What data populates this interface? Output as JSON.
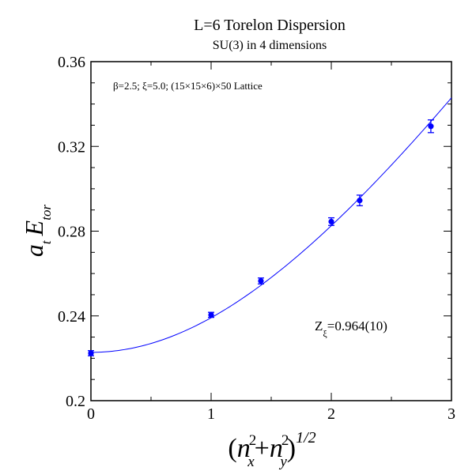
{
  "chart_data": {
    "type": "scatter",
    "title": "L=6 Torelon Dispersion",
    "subtitle": "SU(3) in 4 dimensions",
    "annotation": "β=2.5;  ξ=5.0; (15×15×6)×50 Lattice",
    "fit_label": {
      "main": "Z",
      "sub": "ξ",
      "rest": "=0.964(10)"
    },
    "ylabel": {
      "base": "a",
      "sub": "t",
      "main": "E",
      "main_sub": "tor"
    },
    "xlabel": {
      "n": "n",
      "x": "x",
      "y": "y",
      "sq": "2",
      "power": "1/2"
    },
    "xlim": [
      0,
      3
    ],
    "ylim": [
      0.2,
      0.36
    ],
    "xticks": [
      0,
      1,
      2,
      3
    ],
    "xtick_labels": [
      "0",
      "1",
      "2",
      "3"
    ],
    "yticks": [
      0.2,
      0.24,
      0.28,
      0.32,
      0.36
    ],
    "ytick_labels": [
      "0.2",
      "0.24",
      "0.28",
      "0.32",
      "0.36"
    ],
    "grid": false,
    "marker_color": "#0000ff",
    "line_color": "#0000ff",
    "points": [
      {
        "x": 0.0,
        "y": 0.2224,
        "err": 0.0012
      },
      {
        "x": 1.0,
        "y": 0.2405,
        "err": 0.0012
      },
      {
        "x": 1.4142,
        "y": 0.2565,
        "err": 0.0014
      },
      {
        "x": 2.0,
        "y": 0.2845,
        "err": 0.0018
      },
      {
        "x": 2.2361,
        "y": 0.2945,
        "err": 0.0025
      },
      {
        "x": 2.8284,
        "y": 0.3295,
        "err": 0.003
      }
    ],
    "fit_curve": {
      "E0": 0.2228,
      "Z": 0.964,
      "x_end": 3.0
    }
  }
}
